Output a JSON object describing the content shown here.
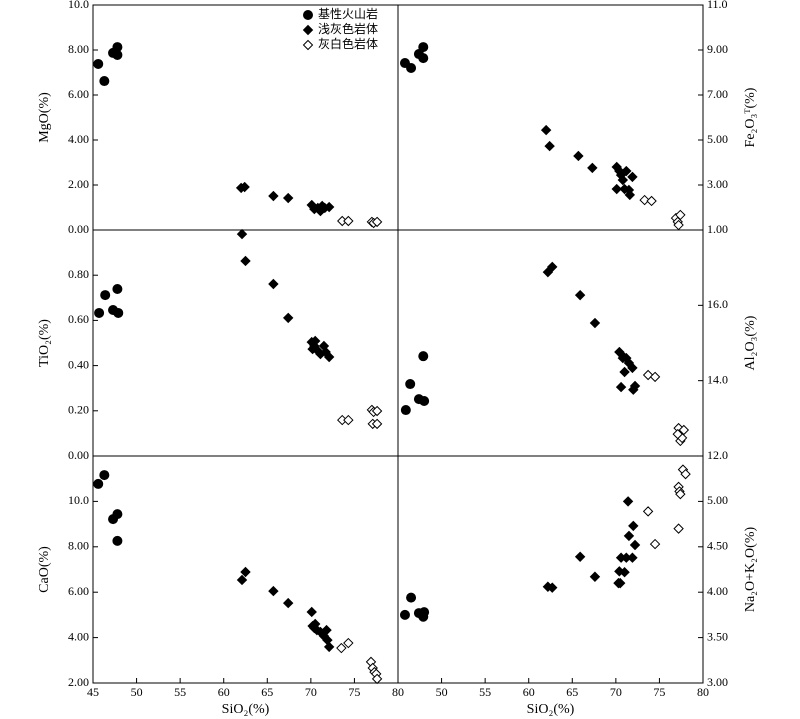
{
  "chart_data": [
    {
      "type": "scatter",
      "ylabel": "MgO(%)",
      "xlim": [
        45,
        80
      ],
      "ylim": [
        0,
        10
      ],
      "yticks": [
        {
          "value": 0,
          "label": "0.00"
        },
        {
          "value": 2,
          "label": "2.00"
        },
        {
          "value": 4,
          "label": "4.00"
        },
        {
          "value": 6,
          "label": "6.00"
        },
        {
          "value": 8,
          "label": "8.00"
        },
        {
          "value": 10,
          "label": "10.0"
        }
      ],
      "legend": "upper right",
      "series": [
        {
          "name": "基性火山岩",
          "color": "#000000",
          "marker": "circle",
          "filled": true,
          "x": [
            45.6,
            46.3,
            47.3,
            47.8,
            47.8
          ],
          "values": [
            7.38,
            6.62,
            7.87,
            8.13,
            7.78
          ]
        },
        {
          "name": "浅灰色岩体",
          "color": "#000000",
          "marker": "diamond",
          "filled": true,
          "x": [
            62.0,
            62.4,
            65.7,
            67.4,
            70.1,
            70.4,
            70.8,
            71.1,
            71.3,
            71.6,
            72.1
          ],
          "values": [
            1.87,
            1.91,
            1.51,
            1.42,
            1.11,
            0.93,
            0.98,
            0.84,
            1.07,
            0.98,
            1.02
          ]
        },
        {
          "name": "灰白色岩体",
          "color": "#000000",
          "marker": "diamond",
          "filled": false,
          "x": [
            73.6,
            74.3,
            77.0,
            77.2,
            77.6
          ],
          "values": [
            0.4,
            0.4,
            0.36,
            0.31,
            0.36
          ]
        }
      ]
    },
    {
      "type": "scatter",
      "ylabel": "Fe₂O₃ᵀ(%)",
      "xlim": [
        45,
        80
      ],
      "ylim": [
        1,
        11
      ],
      "yticks": [
        {
          "value": 1,
          "label": "1.00"
        },
        {
          "value": 3,
          "label": "3.00"
        },
        {
          "value": 5,
          "label": "5.00"
        },
        {
          "value": 7,
          "label": "7.00"
        },
        {
          "value": 9,
          "label": "9.00"
        },
        {
          "value": 11,
          "label": "11.0"
        }
      ],
      "series": [
        {
          "color": "#000000",
          "marker": "circle",
          "filled": true,
          "x": [
            45.8,
            46.5,
            47.4,
            47.9,
            47.9
          ],
          "values": [
            8.42,
            8.2,
            8.82,
            9.13,
            8.64
          ]
        },
        {
          "color": "#000000",
          "marker": "diamond",
          "filled": true,
          "x": [
            62.0,
            62.4,
            65.7,
            67.3,
            70.1,
            70.4,
            70.6,
            70.8,
            71.0,
            71.2,
            71.5,
            71.6,
            71.9,
            70.1
          ],
          "values": [
            5.44,
            4.73,
            4.29,
            3.76,
            3.8,
            3.62,
            3.44,
            3.22,
            2.82,
            3.62,
            2.78,
            2.56,
            3.36,
            2.82
          ]
        },
        {
          "color": "#000000",
          "marker": "diamond",
          "filled": false,
          "x": [
            73.3,
            74.1,
            76.9,
            77.1,
            77.4,
            77.2
          ],
          "values": [
            2.33,
            2.29,
            1.53,
            1.36,
            1.67,
            1.22
          ]
        }
      ]
    },
    {
      "type": "scatter",
      "ylabel": "TiO₂(%)",
      "xlim": [
        45,
        80
      ],
      "ylim": [
        0,
        1
      ],
      "yticks": [
        {
          "value": 0,
          "label": "0.00"
        },
        {
          "value": 0.2,
          "label": "0.20"
        },
        {
          "value": 0.4,
          "label": "0.40"
        },
        {
          "value": 0.6,
          "label": "0.60"
        },
        {
          "value": 0.8,
          "label": "0.80"
        }
      ],
      "series": [
        {
          "color": "#000000",
          "marker": "circle",
          "filled": true,
          "x": [
            45.7,
            46.4,
            47.3,
            47.8,
            47.9
          ],
          "values": [
            0.633,
            0.712,
            0.646,
            0.739,
            0.633
          ]
        },
        {
          "color": "#000000",
          "marker": "diamond",
          "filled": true,
          "x": [
            62.1,
            62.5,
            65.7,
            67.4,
            70.1,
            70.5,
            70.2,
            70.7,
            71.1,
            71.5,
            71.7,
            72.1,
            70.4
          ],
          "values": [
            0.982,
            0.863,
            0.761,
            0.611,
            0.504,
            0.509,
            0.473,
            0.469,
            0.451,
            0.487,
            0.46,
            0.438,
            0.487
          ]
        },
        {
          "color": "#000000",
          "marker": "diamond",
          "filled": false,
          "x": [
            73.6,
            74.3,
            77.0,
            77.2,
            77.6,
            77.1,
            77.6
          ],
          "values": [
            0.159,
            0.159,
            0.204,
            0.195,
            0.199,
            0.142,
            0.142
          ]
        }
      ]
    },
    {
      "type": "scatter",
      "ylabel": "Al₂O₃(%)",
      "xlim": [
        45,
        80
      ],
      "ylim": [
        12,
        18
      ],
      "yticks": [
        {
          "value": 12,
          "label": "12.0"
        },
        {
          "value": 14,
          "label": "14.0"
        },
        {
          "value": 16,
          "label": "16.0"
        }
      ],
      "series": [
        {
          "color": "#000000",
          "marker": "circle",
          "filled": true,
          "x": [
            45.9,
            46.4,
            47.4,
            47.9,
            48.0
          ],
          "values": [
            13.22,
            13.91,
            13.51,
            14.65,
            13.46
          ]
        },
        {
          "color": "#000000",
          "marker": "diamond",
          "filled": true,
          "x": [
            62.2,
            62.7,
            65.9,
            67.6,
            70.4,
            70.8,
            71.2,
            71.0,
            70.6,
            71.5,
            71.9,
            72.0,
            72.2,
            70.9
          ],
          "values": [
            16.88,
            17.02,
            16.27,
            15.53,
            14.76,
            14.6,
            14.6,
            14.23,
            13.83,
            14.47,
            14.34,
            13.76,
            13.86,
            14.63
          ]
        },
        {
          "color": "#000000",
          "marker": "diamond",
          "filled": false,
          "x": [
            73.7,
            74.5,
            77.2,
            77.8,
            77.4,
            77.6,
            77.1
          ],
          "values": [
            14.15,
            14.1,
            12.74,
            12.69,
            12.4,
            12.48,
            12.58
          ]
        }
      ]
    },
    {
      "type": "scatter",
      "xlabel": "SiO₂(%)",
      "ylabel": "CaO(%)",
      "xlim": [
        45,
        80
      ],
      "ylim": [
        2,
        12
      ],
      "xticks": [
        45,
        50,
        55,
        60,
        65,
        70,
        75,
        80
      ],
      "yticks": [
        {
          "value": 2,
          "label": "2.00"
        },
        {
          "value": 4,
          "label": "4.00"
        },
        {
          "value": 6,
          "label": "6.00"
        },
        {
          "value": 8,
          "label": "8.00"
        },
        {
          "value": 10,
          "label": "10.0"
        }
      ],
      "series": [
        {
          "color": "#000000",
          "marker": "circle",
          "filled": true,
          "x": [
            45.6,
            46.3,
            47.3,
            47.8,
            47.8
          ],
          "values": [
            10.77,
            11.16,
            9.22,
            9.44,
            8.26
          ]
        },
        {
          "color": "#000000",
          "marker": "diamond",
          "filled": true,
          "x": [
            62.1,
            62.5,
            65.7,
            67.4,
            70.1,
            70.2,
            70.5,
            70.7,
            71.1,
            71.5,
            71.8,
            71.9,
            72.1,
            70.4
          ],
          "values": [
            6.54,
            6.89,
            6.05,
            5.52,
            5.13,
            4.51,
            4.6,
            4.33,
            4.25,
            4.07,
            4.33,
            3.89,
            3.59,
            4.42
          ]
        },
        {
          "color": "#000000",
          "marker": "diamond",
          "filled": false,
          "x": [
            73.5,
            74.3,
            76.9,
            77.1,
            77.3,
            77.5,
            77.6
          ],
          "values": [
            3.54,
            3.76,
            2.93,
            2.66,
            2.48,
            2.4,
            2.18
          ]
        }
      ]
    },
    {
      "type": "scatter",
      "xlabel": "SiO₂(%)",
      "ylabel": "Na₂O+K₂O(%)",
      "xlim": [
        45,
        80
      ],
      "ylim": [
        3,
        5.5
      ],
      "xticks": [
        50,
        55,
        60,
        65,
        70,
        75,
        80
      ],
      "yticks": [
        {
          "value": 3,
          "label": "3.00"
        },
        {
          "value": 3.5,
          "label": "3.50"
        },
        {
          "value": 4,
          "label": "4.00"
        },
        {
          "value": 4.5,
          "label": "4.50"
        },
        {
          "value": 5,
          "label": "5.00"
        }
      ],
      "series": [
        {
          "color": "#000000",
          "marker": "circle",
          "filled": true,
          "x": [
            45.8,
            46.5,
            47.4,
            47.9,
            48.0
          ],
          "values": [
            3.75,
            3.94,
            3.77,
            3.73,
            3.78
          ]
        },
        {
          "color": "#000000",
          "marker": "diamond",
          "filled": true,
          "x": [
            62.2,
            62.7,
            65.9,
            67.6,
            70.3,
            70.5,
            70.6,
            71.0,
            71.2,
            71.4,
            71.5,
            71.9,
            72.0,
            72.2,
            70.4
          ],
          "values": [
            4.06,
            4.05,
            4.39,
            4.17,
            4.1,
            4.1,
            4.38,
            4.22,
            4.38,
            5.0,
            4.62,
            4.38,
            4.73,
            4.52,
            4.23
          ]
        },
        {
          "color": "#000000",
          "marker": "diamond",
          "filled": false,
          "x": [
            73.7,
            74.5,
            77.2,
            77.3,
            77.4,
            77.2,
            77.7,
            78.0
          ],
          "values": [
            4.89,
            4.53,
            5.16,
            5.11,
            5.08,
            4.7,
            5.35,
            5.3
          ]
        }
      ]
    }
  ]
}
